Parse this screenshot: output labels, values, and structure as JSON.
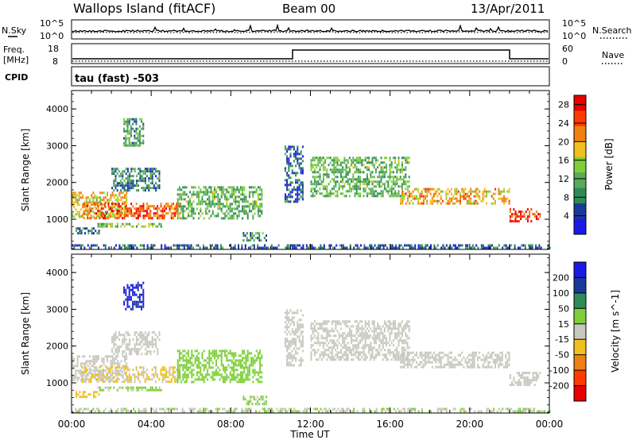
{
  "header": {
    "station": "Wallops Island (fitACF)",
    "beam": "Beam 00",
    "date": "13/Apr/2011"
  },
  "noise_panel": {
    "left_label": "N.Sky",
    "right_label": "N.Search",
    "top_tick": "10^5",
    "bottom_tick": "10^0"
  },
  "freq_panel": {
    "left_label_line1": "Freq.",
    "left_label_line2": "[MHz]",
    "right_label": "Nave",
    "left_ticks": [
      "18",
      "8"
    ],
    "right_ticks": [
      "60",
      "0"
    ]
  },
  "cpid_panel": {
    "left_label": "CPID",
    "text": "tau (fast) -503"
  },
  "colors": {
    "power": [
      "#1a1ae6",
      "#1a3a9a",
      "#2e8b57",
      "#5aaa5a",
      "#7fcf3a",
      "#f0c020",
      "#f08010",
      "#ff3a00",
      "#e60000"
    ],
    "velocity": [
      "#1a1ae6",
      "#1a3a9a",
      "#2e8b57",
      "#7fcf3a",
      "#c8c8be",
      "#f0c020",
      "#f08010",
      "#ff3a00",
      "#e60000"
    ]
  },
  "chart_data": [
    {
      "type": "heatmap",
      "quantity": "power",
      "ylabel": "Slant Range [km]",
      "xlabel": "Time UT",
      "x_ticks": [
        "00:00",
        "04:00",
        "08:00",
        "12:00",
        "16:00",
        "20:00",
        "00:00"
      ],
      "x_range_hours": [
        0,
        24
      ],
      "y_ticks": [
        1000,
        2000,
        3000,
        4000
      ],
      "ylim": [
        180,
        4500
      ],
      "colorbar_label": "Power [dB]",
      "colorbar_ticks": [
        4,
        8,
        12,
        16,
        20,
        24,
        28
      ],
      "colorbar_range": [
        0,
        30
      ],
      "echo_regions": [
        {
          "t": [
            0.0,
            2.8
          ],
          "range": [
            1050,
            1750
          ],
          "value": 18
        },
        {
          "t": [
            0.5,
            5.5
          ],
          "range": [
            1000,
            1450
          ],
          "value": 24
        },
        {
          "t": [
            1.3,
            4.5
          ],
          "range": [
            780,
            900
          ],
          "value": 13
        },
        {
          "t": [
            0.2,
            1.4
          ],
          "range": [
            630,
            780
          ],
          "value": 8
        },
        {
          "t": [
            2.0,
            4.4
          ],
          "range": [
            1800,
            2400
          ],
          "value": 8
        },
        {
          "t": [
            2.6,
            3.6
          ],
          "range": [
            3000,
            3750
          ],
          "value": 11
        },
        {
          "t": [
            5.3,
            9.6
          ],
          "range": [
            1050,
            1900
          ],
          "value": 12
        },
        {
          "t": [
            8.6,
            9.8
          ],
          "range": [
            400,
            650
          ],
          "value": 10
        },
        {
          "t": [
            10.7,
            11.6
          ],
          "range": [
            1500,
            3000
          ],
          "value": 6
        },
        {
          "t": [
            12.0,
            17.0
          ],
          "range": [
            1600,
            2700
          ],
          "value": 12
        },
        {
          "t": [
            16.5,
            22.0
          ],
          "range": [
            1400,
            1850
          ],
          "value": 20
        },
        {
          "t": [
            22.0,
            23.5
          ],
          "range": [
            950,
            1300
          ],
          "value": 26
        },
        {
          "t": [
            0.0,
            24.0
          ],
          "range": [
            200,
            320
          ],
          "value": 6
        }
      ]
    },
    {
      "type": "heatmap",
      "quantity": "velocity",
      "ylabel": "Slant Range [km]",
      "xlabel": "Time UT",
      "x_ticks": [
        "00:00",
        "04:00",
        "08:00",
        "12:00",
        "16:00",
        "20:00",
        "00:00"
      ],
      "x_range_hours": [
        0,
        24
      ],
      "y_ticks": [
        1000,
        2000,
        3000,
        4000
      ],
      "ylim": [
        180,
        4500
      ],
      "colorbar_label": "Velocity [m s^-1]",
      "colorbar_ticks": [
        200,
        100,
        50,
        15,
        -15,
        -50,
        -100,
        -200
      ],
      "colorbar_range": [
        -250,
        250
      ],
      "echo_regions": [
        {
          "t": [
            0.0,
            2.8
          ],
          "range": [
            1050,
            1750
          ],
          "value": 0
        },
        {
          "t": [
            0.5,
            5.5
          ],
          "range": [
            1000,
            1450
          ],
          "value": -30
        },
        {
          "t": [
            1.3,
            4.5
          ],
          "range": [
            780,
            900
          ],
          "value": 40
        },
        {
          "t": [
            0.2,
            1.4
          ],
          "range": [
            630,
            780
          ],
          "value": -60
        },
        {
          "t": [
            2.0,
            4.4
          ],
          "range": [
            1800,
            2400
          ],
          "value": 0
        },
        {
          "t": [
            2.6,
            3.6
          ],
          "range": [
            3000,
            3750
          ],
          "value": 200
        },
        {
          "t": [
            5.3,
            9.6
          ],
          "range": [
            1050,
            1900
          ],
          "value": 60
        },
        {
          "t": [
            8.6,
            9.8
          ],
          "range": [
            400,
            650
          ],
          "value": 40
        },
        {
          "t": [
            10.7,
            11.6
          ],
          "range": [
            1500,
            3000
          ],
          "value": 0
        },
        {
          "t": [
            12.0,
            17.0
          ],
          "range": [
            1600,
            2700
          ],
          "value": 0
        },
        {
          "t": [
            16.5,
            22.0
          ],
          "range": [
            1400,
            1850
          ],
          "value": 0
        },
        {
          "t": [
            22.0,
            23.5
          ],
          "range": [
            950,
            1300
          ],
          "value": 0
        },
        {
          "t": [
            0.0,
            24.0
          ],
          "range": [
            200,
            320
          ],
          "value": 20
        }
      ]
    }
  ]
}
